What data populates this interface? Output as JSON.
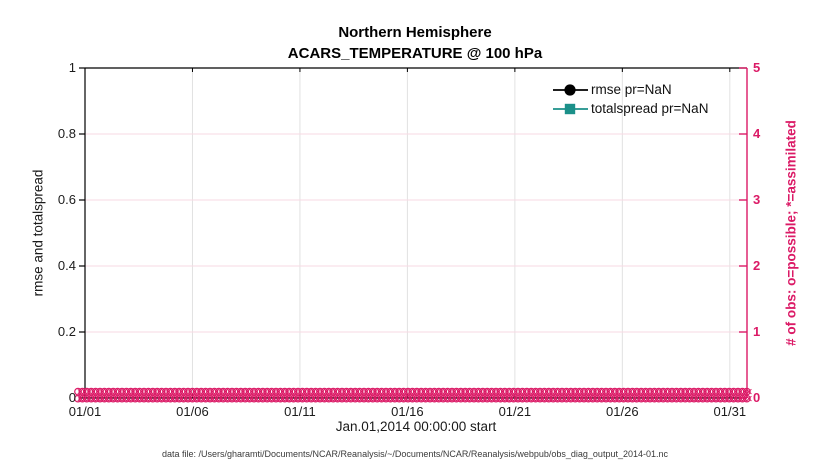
{
  "figure": {
    "title": "Northern Hemisphere",
    "subtitle": "ACARS_TEMPERATURE @ 100 hPa",
    "footer": "data file: /Users/gharamti/Documents/NCAR/Reanalysis/~/Documents/NCAR/Reanalysis/webpub/obs_diag_output_2014-01.nc"
  },
  "chart_data": {
    "type": "line",
    "title": "Northern Hemisphere",
    "subtitle": "ACARS_TEMPERATURE @ 100 hPa",
    "xlabel": "Jan.01,2014 00:00:00 start",
    "ylabel_left": "rmse and totalspread",
    "ylabel_right": "# of obs: o=possible; *=assimilated",
    "x_axis": {
      "tick_labels": [
        "01/01",
        "01/06",
        "01/11",
        "01/16",
        "01/21",
        "01/26",
        "01/31"
      ],
      "tick_days": [
        0,
        5,
        10,
        15,
        20,
        25,
        30
      ],
      "range_days": [
        0,
        30.8
      ]
    },
    "y_axis_left": {
      "min": 0,
      "max": 1,
      "tick_labels": [
        "0",
        "0.2",
        "0.4",
        "0.6",
        "0.8",
        "1"
      ],
      "tick_values": [
        0,
        0.2,
        0.4,
        0.6,
        0.8,
        1
      ],
      "color": "#1c1c1c"
    },
    "y_axis_right": {
      "min": 0,
      "max": 5,
      "tick_labels": [
        "0",
        "1",
        "2",
        "3",
        "4",
        "5"
      ],
      "tick_values": [
        0,
        1,
        2,
        3,
        4,
        5
      ],
      "color": "#DB1A66"
    },
    "series": [
      {
        "name": "rmse pr=NaN",
        "color": "#000000",
        "marker": "circle",
        "values": []
      },
      {
        "name": "totalspread pr=NaN",
        "color": "#1B9089",
        "marker": "square",
        "values": []
      }
    ],
    "obs_counts": {
      "possible_marker": "o",
      "assimilated_marker": "*",
      "value_on_right_axis": 0,
      "extent_days": [
        0,
        30.8
      ],
      "color": "#DB1A66"
    },
    "grid": {
      "vertical_color": "#E2E2E2",
      "horizontal_color": "#F7D9E3",
      "grid_on": true
    },
    "legend_position": "upper-right-inside"
  },
  "legend": {
    "items": [
      {
        "label": "rmse pr=NaN",
        "color": "#000000",
        "marker": "circle"
      },
      {
        "label": "totalspread pr=NaN",
        "color": "#1B9089",
        "marker": "square"
      }
    ]
  }
}
